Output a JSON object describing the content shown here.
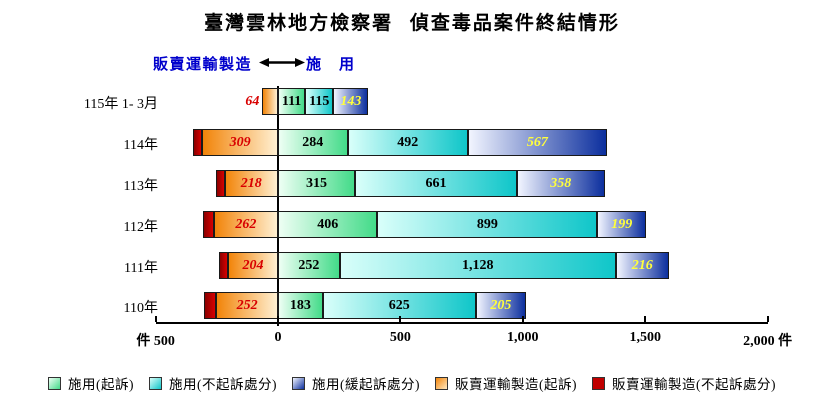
{
  "title": "臺灣雲林地方檢察署 偵查毒品案件終結情形",
  "header": {
    "left_label": "販賣運輸製造",
    "right_label": "施　用",
    "arrow_icon": "double-headed-arrow"
  },
  "chart_data": {
    "type": "bar",
    "orientation": "horizontal-diverging-stacked",
    "title": "臺灣雲林地方檢察署 偵查毒品案件終結情形",
    "categories": [
      "115年 1- 3月",
      "114年",
      "113年",
      "112年",
      "111年",
      "110年"
    ],
    "left_stack": [
      {
        "name": "販賣運輸製造(起訴)",
        "values": [
          64,
          309,
          218,
          262,
          204,
          252
        ],
        "fill": [
          "#F28409",
          "#FFF0D2"
        ],
        "label_color": "#D80000",
        "label_italic": true,
        "labels_shown": true
      },
      {
        "name": "販賣運輸製造(不起訴處分)",
        "values": [
          0,
          37,
          36,
          44,
          38,
          50
        ],
        "values_estimated": true,
        "fill": [
          "#8A0000",
          "#D80000"
        ],
        "label_color": "#000000",
        "label_italic": false,
        "labels_shown": false
      }
    ],
    "right_stack": [
      {
        "name": "施用(起訴)",
        "values": [
          111,
          284,
          315,
          406,
          252,
          183
        ],
        "fill": [
          "#EEFFF4",
          "#43DB89"
        ],
        "label_color": "#000000",
        "label_italic": false,
        "labels_shown": true
      },
      {
        "name": "施用(不起訴處分)",
        "values": [
          115,
          492,
          661,
          899,
          1128,
          625
        ],
        "fill": [
          "#D9FFFA",
          "#0FC6C9"
        ],
        "label_color": "#000000",
        "label_italic": false,
        "labels_shown": true
      },
      {
        "name": "施用(緩起訴處分)",
        "values": [
          143,
          567,
          358,
          199,
          216,
          205
        ],
        "fill": [
          "#F2F5FF",
          "#0C2F9E"
        ],
        "label_color": "#FFFF3C",
        "label_italic": true,
        "labels_shown": true
      }
    ],
    "axis": {
      "min": -500,
      "max": 2000,
      "unit": "件",
      "tick_values": [
        -500,
        0,
        500,
        1000,
        1500,
        2000
      ],
      "tick_labels": [
        "件 500",
        "0",
        "500",
        "1,000",
        "1,500",
        "2,000 件"
      ],
      "grid": false
    },
    "legend_position": "bottom",
    "legend": [
      {
        "label": "施用(起訴)",
        "fill": [
          "#EEFFF4",
          "#43DB89"
        ]
      },
      {
        "label": "施用(不起訴處分)",
        "fill": [
          "#D9FFFA",
          "#0FC6C9"
        ]
      },
      {
        "label": "施用(緩起訴處分)",
        "fill": [
          "#F2F5FF",
          "#0C2F9E"
        ]
      },
      {
        "label": "販賣運輸製造(起訴)",
        "fill": [
          "#F28409",
          "#FFE9C2"
        ]
      },
      {
        "label": "販賣運輸製造(不起訴處分)",
        "fill": [
          "#C00000",
          "#C00000"
        ]
      }
    ],
    "colors": {
      "header_text": "#0000CC",
      "axis": "#000000",
      "value_label_left": "#D80000",
      "value_label_deferred": "#FFFF3C"
    }
  }
}
